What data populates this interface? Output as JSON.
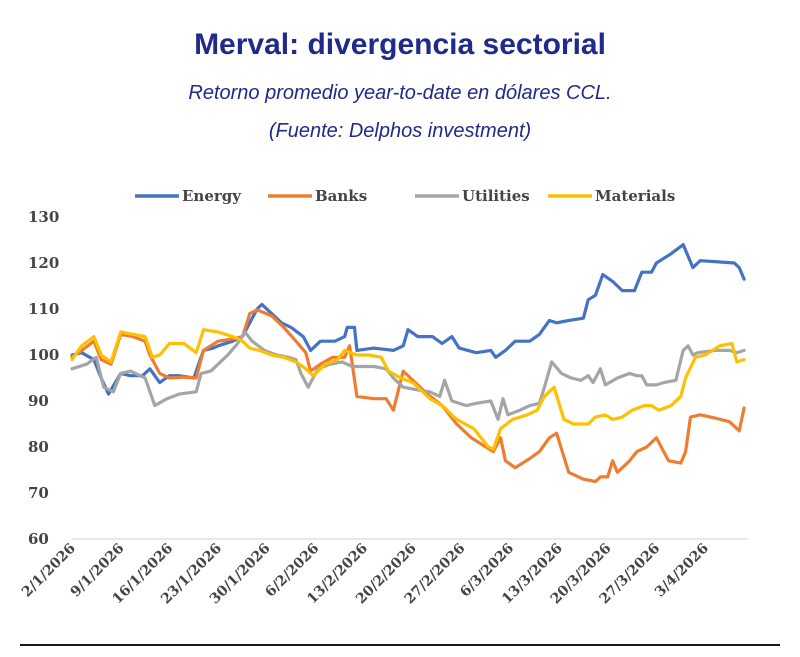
{
  "chart_data": {
    "type": "line",
    "title": "Merval: divergencia sectorial",
    "subtitle": "Retorno promedio year-to-date en dólares CCL.",
    "source_note": "(Fuente: Delphos investment)",
    "xlabel": "",
    "ylabel": "",
    "ylim": [
      60,
      130
    ],
    "yticks": [
      "130",
      "120",
      "110",
      "100",
      "90",
      "80",
      "70",
      "60"
    ],
    "grid": false,
    "legend_position": "top",
    "x_tick_labels": [
      "2/1/2026",
      "9/1/2026",
      "16/1/2026",
      "23/1/2026",
      "30/1/2026",
      "6/2/2026",
      "13/2/2026",
      "20/2/2026",
      "27/2/2026",
      "6/3/2026",
      "13/3/2026",
      "20/3/2026",
      "27/3/2026",
      "3/4/2026"
    ],
    "series": [
      {
        "name": "Energy",
        "color": "#4472c4",
        "values": [
          [
            0,
            100
          ],
          [
            0.2,
            100.5
          ],
          [
            0.45,
            99
          ],
          [
            0.6,
            95
          ],
          [
            0.75,
            91.5
          ],
          [
            1,
            96
          ],
          [
            1.2,
            95.5
          ],
          [
            1.45,
            95.5
          ],
          [
            1.6,
            97
          ],
          [
            1.8,
            94
          ],
          [
            2,
            95.5
          ],
          [
            2.2,
            95.5
          ],
          [
            2.5,
            95
          ],
          [
            2.7,
            101
          ],
          [
            2.9,
            101.5
          ],
          [
            3,
            102
          ],
          [
            3.3,
            103
          ],
          [
            3.5,
            104
          ],
          [
            3.65,
            107
          ],
          [
            3.8,
            110
          ],
          [
            3.9,
            111
          ],
          [
            4.05,
            109.5
          ],
          [
            4.3,
            107
          ],
          [
            4.5,
            106
          ],
          [
            4.75,
            104
          ],
          [
            4.9,
            101
          ],
          [
            5.1,
            103
          ],
          [
            5.4,
            103
          ],
          [
            5.6,
            104
          ],
          [
            5.65,
            106
          ],
          [
            5.8,
            106
          ],
          [
            5.85,
            101
          ],
          [
            6.2,
            101.5
          ],
          [
            6.6,
            101
          ],
          [
            6.8,
            102
          ],
          [
            6.9,
            105.5
          ],
          [
            7.1,
            104
          ],
          [
            7.4,
            104
          ],
          [
            7.6,
            102.5
          ],
          [
            7.8,
            104
          ],
          [
            7.95,
            101.5
          ],
          [
            8.3,
            100.5
          ],
          [
            8.6,
            101
          ],
          [
            8.7,
            99.5
          ],
          [
            8.9,
            101
          ],
          [
            9.1,
            103
          ],
          [
            9.4,
            103
          ],
          [
            9.6,
            104.5
          ],
          [
            9.8,
            107.5
          ],
          [
            9.95,
            107
          ],
          [
            10.2,
            107.5
          ],
          [
            10.5,
            108
          ],
          [
            10.6,
            112
          ],
          [
            10.75,
            113
          ],
          [
            10.9,
            117.5
          ],
          [
            11.1,
            116
          ],
          [
            11.3,
            114
          ],
          [
            11.55,
            114
          ],
          [
            11.7,
            118
          ],
          [
            11.9,
            118
          ],
          [
            12,
            120
          ],
          [
            12.3,
            122
          ],
          [
            12.55,
            124
          ],
          [
            12.75,
            119
          ],
          [
            12.9,
            120.5
          ],
          [
            13.2,
            120.3
          ],
          [
            13.6,
            120
          ],
          [
            13.7,
            119
          ],
          [
            13.8,
            116.5
          ]
        ]
      },
      {
        "name": "Banks",
        "color": "#ed7d31",
        "values": [
          [
            0,
            99.5
          ],
          [
            0.2,
            101
          ],
          [
            0.45,
            103
          ],
          [
            0.6,
            99
          ],
          [
            0.8,
            98
          ],
          [
            1,
            104.5
          ],
          [
            1.25,
            104
          ],
          [
            1.5,
            103
          ],
          [
            1.6,
            100
          ],
          [
            1.8,
            96
          ],
          [
            2,
            95
          ],
          [
            2.3,
            95.2
          ],
          [
            2.55,
            95
          ],
          [
            2.7,
            101
          ],
          [
            3,
            103
          ],
          [
            3.3,
            103.5
          ],
          [
            3.5,
            104
          ],
          [
            3.65,
            109
          ],
          [
            3.8,
            109.8
          ],
          [
            4.1,
            108.5
          ],
          [
            4.35,
            106
          ],
          [
            4.6,
            103
          ],
          [
            4.8,
            100.5
          ],
          [
            4.9,
            96.5
          ],
          [
            5.1,
            98
          ],
          [
            5.35,
            99.5
          ],
          [
            5.6,
            99.5
          ],
          [
            5.7,
            102
          ],
          [
            5.85,
            91
          ],
          [
            6.2,
            90.5
          ],
          [
            6.45,
            90.5
          ],
          [
            6.6,
            88
          ],
          [
            6.8,
            96.5
          ],
          [
            7.05,
            94
          ],
          [
            7.3,
            91.5
          ],
          [
            7.6,
            89
          ],
          [
            7.9,
            85
          ],
          [
            8.2,
            82
          ],
          [
            8.5,
            80
          ],
          [
            8.65,
            79
          ],
          [
            8.8,
            82
          ],
          [
            8.9,
            77
          ],
          [
            9.1,
            75.5
          ],
          [
            9.4,
            77.5
          ],
          [
            9.6,
            79
          ],
          [
            9.8,
            82
          ],
          [
            9.95,
            83
          ],
          [
            10.2,
            74.5
          ],
          [
            10.5,
            73
          ],
          [
            10.75,
            72.5
          ],
          [
            10.85,
            73.5
          ],
          [
            11,
            73.5
          ],
          [
            11.1,
            77
          ],
          [
            11.2,
            74.5
          ],
          [
            11.45,
            77
          ],
          [
            11.6,
            79
          ],
          [
            11.8,
            80
          ],
          [
            11.9,
            81
          ],
          [
            12,
            82
          ],
          [
            12.15,
            79
          ],
          [
            12.25,
            77
          ],
          [
            12.5,
            76.5
          ],
          [
            12.6,
            79
          ],
          [
            12.7,
            86.5
          ],
          [
            12.9,
            87
          ],
          [
            13.2,
            86.3
          ],
          [
            13.5,
            85.5
          ],
          [
            13.7,
            83.5
          ],
          [
            13.8,
            88.5
          ]
        ]
      },
      {
        "name": "Utilities",
        "color": "#a5a5a5",
        "values": [
          [
            0,
            97
          ],
          [
            0.3,
            98
          ],
          [
            0.5,
            99.5
          ],
          [
            0.65,
            93
          ],
          [
            0.85,
            92
          ],
          [
            1,
            96
          ],
          [
            1.2,
            96.5
          ],
          [
            1.5,
            95
          ],
          [
            1.7,
            89
          ],
          [
            1.95,
            90.5
          ],
          [
            2.2,
            91.5
          ],
          [
            2.55,
            92
          ],
          [
            2.65,
            96
          ],
          [
            2.85,
            96.5
          ],
          [
            3,
            98
          ],
          [
            3.2,
            100
          ],
          [
            3.4,
            102.5
          ],
          [
            3.55,
            105
          ],
          [
            3.7,
            103
          ],
          [
            3.95,
            101
          ],
          [
            4.2,
            100
          ],
          [
            4.45,
            99.5
          ],
          [
            4.6,
            99
          ],
          [
            4.7,
            96
          ],
          [
            4.85,
            93
          ],
          [
            5.05,
            97
          ],
          [
            5.3,
            98
          ],
          [
            5.55,
            98.5
          ],
          [
            5.75,
            97.5
          ],
          [
            6,
            97.5
          ],
          [
            6.2,
            97.5
          ],
          [
            6.45,
            97
          ],
          [
            6.6,
            95
          ],
          [
            6.8,
            93
          ],
          [
            7.05,
            92.5
          ],
          [
            7.35,
            92
          ],
          [
            7.55,
            91
          ],
          [
            7.65,
            94.5
          ],
          [
            7.8,
            90
          ],
          [
            8.1,
            89
          ],
          [
            8.3,
            89.5
          ],
          [
            8.6,
            90
          ],
          [
            8.75,
            86
          ],
          [
            8.85,
            90.5
          ],
          [
            8.95,
            87
          ],
          [
            9.2,
            88
          ],
          [
            9.4,
            89
          ],
          [
            9.6,
            89.5
          ],
          [
            9.7,
            93
          ],
          [
            9.85,
            98.5
          ],
          [
            10.05,
            96
          ],
          [
            10.25,
            95
          ],
          [
            10.45,
            94.5
          ],
          [
            10.6,
            95.5
          ],
          [
            10.7,
            94
          ],
          [
            10.85,
            97
          ],
          [
            10.95,
            93.5
          ],
          [
            11.2,
            95
          ],
          [
            11.45,
            96
          ],
          [
            11.6,
            95.5
          ],
          [
            11.7,
            95.5
          ],
          [
            11.8,
            93.5
          ],
          [
            12,
            93.5
          ],
          [
            12.15,
            94
          ],
          [
            12.4,
            94.5
          ],
          [
            12.55,
            101
          ],
          [
            12.65,
            102
          ],
          [
            12.75,
            100
          ],
          [
            12.85,
            100.5
          ],
          [
            13.2,
            101
          ],
          [
            13.5,
            101
          ],
          [
            13.65,
            100.5
          ],
          [
            13.8,
            101
          ]
        ]
      },
      {
        "name": "Materials",
        "color": "#ffc000",
        "values": [
          [
            0,
            99
          ],
          [
            0.2,
            102
          ],
          [
            0.45,
            104
          ],
          [
            0.6,
            100
          ],
          [
            0.8,
            98.5
          ],
          [
            1,
            105
          ],
          [
            1.25,
            104.5
          ],
          [
            1.5,
            104
          ],
          [
            1.65,
            99.5
          ],
          [
            1.8,
            100
          ],
          [
            2,
            102.5
          ],
          [
            2.3,
            102.5
          ],
          [
            2.55,
            100.5
          ],
          [
            2.7,
            105.5
          ],
          [
            3,
            105
          ],
          [
            3.3,
            104
          ],
          [
            3.5,
            103
          ],
          [
            3.65,
            101.5
          ],
          [
            3.85,
            101
          ],
          [
            4.1,
            100
          ],
          [
            4.35,
            99.5
          ],
          [
            4.6,
            98.5
          ],
          [
            4.8,
            97
          ],
          [
            4.95,
            95.5
          ],
          [
            5.2,
            98
          ],
          [
            5.45,
            99
          ],
          [
            5.6,
            101
          ],
          [
            5.85,
            100
          ],
          [
            6.1,
            100
          ],
          [
            6.35,
            99.5
          ],
          [
            6.5,
            96.5
          ],
          [
            6.75,
            95
          ],
          [
            7.0,
            94
          ],
          [
            7.35,
            90.5
          ],
          [
            7.6,
            89
          ],
          [
            7.9,
            86
          ],
          [
            8.25,
            84
          ],
          [
            8.55,
            80
          ],
          [
            8.65,
            79.5
          ],
          [
            8.8,
            84
          ],
          [
            9.05,
            86
          ],
          [
            9.35,
            87
          ],
          [
            9.55,
            88
          ],
          [
            9.7,
            91
          ],
          [
            9.9,
            93
          ],
          [
            10.1,
            86
          ],
          [
            10.3,
            85
          ],
          [
            10.6,
            85
          ],
          [
            10.75,
            86.5
          ],
          [
            10.95,
            87
          ],
          [
            11.1,
            86
          ],
          [
            11.3,
            86.5
          ],
          [
            11.5,
            88
          ],
          [
            11.75,
            89
          ],
          [
            11.9,
            89
          ],
          [
            12.05,
            88
          ],
          [
            12.3,
            89
          ],
          [
            12.5,
            91
          ],
          [
            12.6,
            95
          ],
          [
            12.8,
            99.5
          ],
          [
            13.0,
            100
          ],
          [
            13.3,
            102
          ],
          [
            13.55,
            102.5
          ],
          [
            13.65,
            98.5
          ],
          [
            13.8,
            99
          ]
        ]
      }
    ]
  }
}
